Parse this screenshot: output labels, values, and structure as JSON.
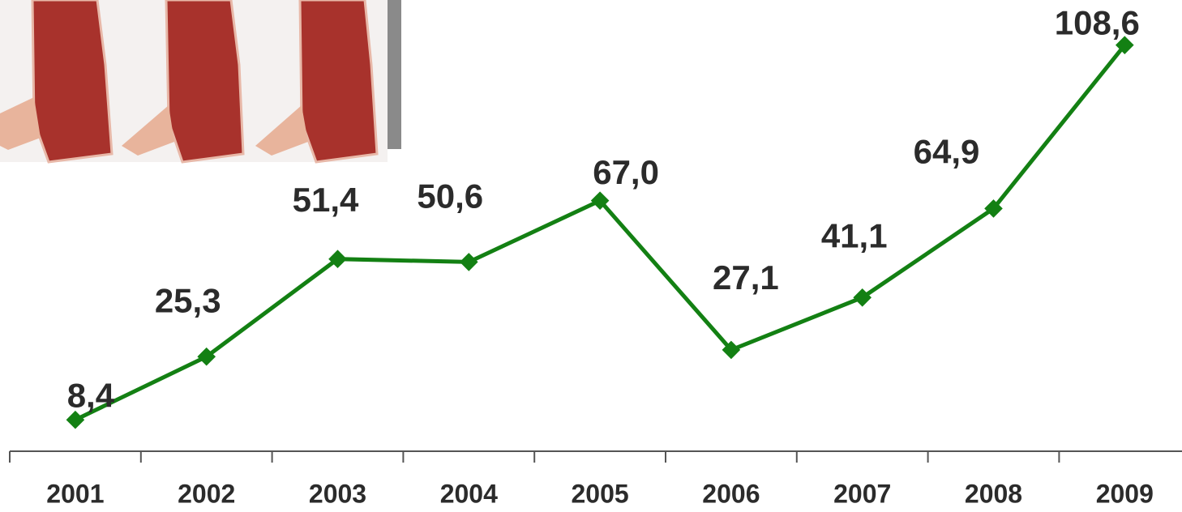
{
  "chart_data": {
    "type": "line",
    "categories": [
      "2001",
      "2002",
      "2003",
      "2004",
      "2005",
      "2006",
      "2007",
      "2008",
      "2009"
    ],
    "values": [
      8.4,
      25.3,
      51.4,
      50.6,
      67.0,
      27.1,
      41.1,
      64.9,
      108.6
    ],
    "value_labels": [
      "8,4",
      "25,3",
      "51,4",
      "50,6",
      "67,0",
      "27,1",
      "41,1",
      "64,9",
      "108,6"
    ],
    "color": "#138013",
    "ylim": [
      0,
      120
    ]
  }
}
